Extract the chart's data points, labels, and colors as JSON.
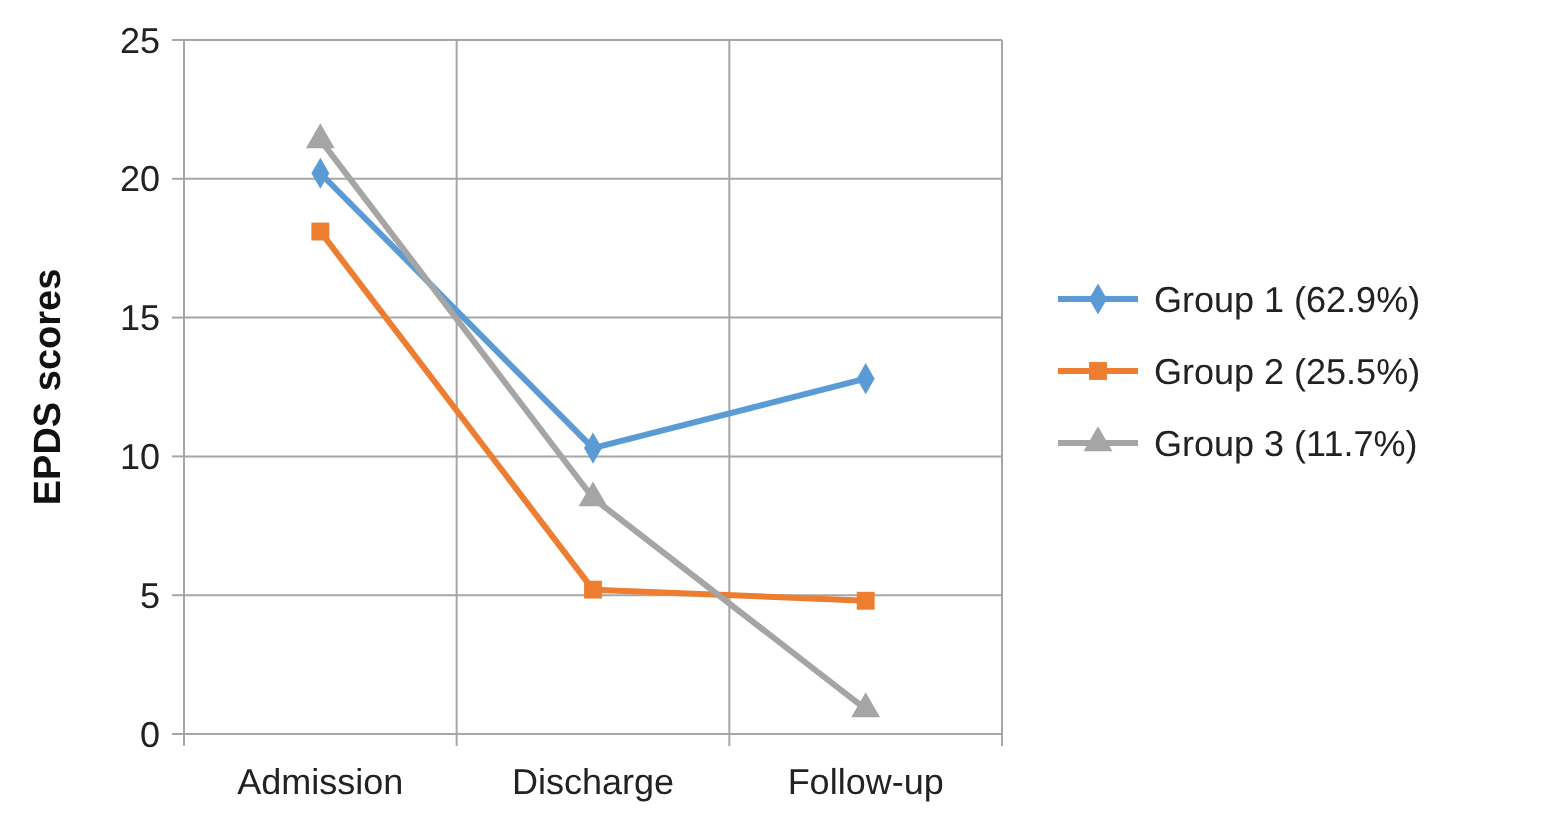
{
  "chart_data": {
    "type": "line",
    "ylabel": "EPDS scores",
    "categories": [
      "Admission",
      "Discharge",
      "Follow-up"
    ],
    "series": [
      {
        "name": "Group 1 (62.9%)",
        "color": "#5b9bd5",
        "marker": "diamond",
        "values": [
          20.2,
          10.3,
          12.8
        ]
      },
      {
        "name": "Group 2 (25.5%)",
        "color": "#ed7d31",
        "marker": "square",
        "values": [
          18.1,
          5.2,
          4.8
        ]
      },
      {
        "name": "Group 3 (11.7%)",
        "color": "#a5a5a5",
        "marker": "triangle",
        "values": [
          21.4,
          8.5,
          0.9
        ]
      }
    ],
    "ylim": [
      0,
      25
    ],
    "yticks": [
      0,
      5,
      10,
      15,
      20,
      25
    ],
    "grid": true,
    "legend": "right",
    "line_style": "solid"
  }
}
